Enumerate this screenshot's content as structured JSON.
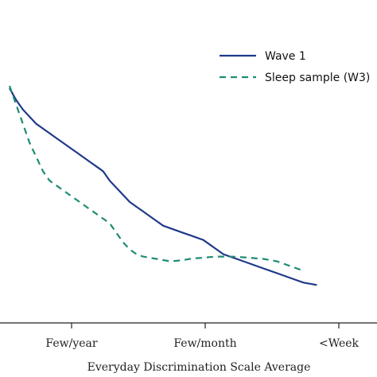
{
  "chart_data": {
    "type": "line",
    "xlabel": "Everyday Discrimination Scale Average",
    "ylabel": "",
    "title": "",
    "xlim": [
      -0.55,
      2.3
    ],
    "ylim": [
      0,
      1
    ],
    "x_ticks": [
      {
        "value": 0.5,
        "label": "Few/year"
      },
      {
        "value": 1.5,
        "label": "Few/month"
      },
      {
        "value": 2.5,
        "label": "<Week"
      }
    ],
    "legend_position": "top-right",
    "series": [
      {
        "name": "Wave  1",
        "color": "#1f3a8a",
        "dash": "solid",
        "points": [
          [
            0.0,
            0.99
          ],
          [
            0.05,
            0.94
          ],
          [
            0.1,
            0.9
          ],
          [
            0.15,
            0.87
          ],
          [
            0.2,
            0.84
          ],
          [
            0.25,
            0.82
          ],
          [
            0.3,
            0.8
          ],
          [
            0.35,
            0.78
          ],
          [
            0.4,
            0.76
          ],
          [
            0.45,
            0.74
          ],
          [
            0.5,
            0.72
          ],
          [
            0.55,
            0.7
          ],
          [
            0.6,
            0.68
          ],
          [
            0.65,
            0.66
          ],
          [
            0.7,
            0.64
          ],
          [
            0.75,
            0.6
          ],
          [
            0.8,
            0.57
          ],
          [
            0.85,
            0.54
          ],
          [
            0.9,
            0.51
          ],
          [
            0.95,
            0.49
          ],
          [
            1.0,
            0.47
          ],
          [
            1.05,
            0.45
          ],
          [
            1.1,
            0.43
          ],
          [
            1.15,
            0.41
          ],
          [
            1.2,
            0.4
          ],
          [
            1.25,
            0.39
          ],
          [
            1.3,
            0.38
          ],
          [
            1.35,
            0.37
          ],
          [
            1.4,
            0.36
          ],
          [
            1.45,
            0.35
          ],
          [
            1.5,
            0.33
          ],
          [
            1.55,
            0.31
          ],
          [
            1.6,
            0.29
          ],
          [
            1.65,
            0.28
          ],
          [
            1.7,
            0.27
          ],
          [
            1.75,
            0.26
          ],
          [
            1.8,
            0.25
          ],
          [
            1.85,
            0.24
          ],
          [
            1.9,
            0.23
          ],
          [
            1.95,
            0.22
          ],
          [
            2.0,
            0.21
          ],
          [
            2.05,
            0.2
          ],
          [
            2.1,
            0.19
          ],
          [
            2.15,
            0.18
          ],
          [
            2.2,
            0.17
          ],
          [
            2.25,
            0.165
          ],
          [
            2.3,
            0.16
          ]
        ]
      },
      {
        "name": "Sleep sample (W3)",
        "color": "#1e8c74",
        "dash": "dashed",
        "points": [
          [
            0.0,
            1.0
          ],
          [
            0.05,
            0.92
          ],
          [
            0.1,
            0.84
          ],
          [
            0.15,
            0.76
          ],
          [
            0.2,
            0.7
          ],
          [
            0.25,
            0.64
          ],
          [
            0.3,
            0.6
          ],
          [
            0.35,
            0.58
          ],
          [
            0.4,
            0.56
          ],
          [
            0.45,
            0.54
          ],
          [
            0.5,
            0.52
          ],
          [
            0.55,
            0.5
          ],
          [
            0.6,
            0.48
          ],
          [
            0.65,
            0.46
          ],
          [
            0.7,
            0.44
          ],
          [
            0.75,
            0.42
          ],
          [
            0.8,
            0.38
          ],
          [
            0.85,
            0.34
          ],
          [
            0.9,
            0.31
          ],
          [
            0.95,
            0.29
          ],
          [
            1.0,
            0.28
          ],
          [
            1.05,
            0.275
          ],
          [
            1.1,
            0.27
          ],
          [
            1.15,
            0.265
          ],
          [
            1.2,
            0.26
          ],
          [
            1.25,
            0.262
          ],
          [
            1.3,
            0.265
          ],
          [
            1.35,
            0.27
          ],
          [
            1.4,
            0.273
          ],
          [
            1.45,
            0.275
          ],
          [
            1.5,
            0.278
          ],
          [
            1.55,
            0.28
          ],
          [
            1.6,
            0.28
          ],
          [
            1.65,
            0.28
          ],
          [
            1.7,
            0.279
          ],
          [
            1.75,
            0.277
          ],
          [
            1.8,
            0.275
          ],
          [
            1.85,
            0.272
          ],
          [
            1.9,
            0.27
          ],
          [
            1.95,
            0.265
          ],
          [
            2.0,
            0.26
          ],
          [
            2.05,
            0.25
          ],
          [
            2.1,
            0.24
          ],
          [
            2.15,
            0.23
          ],
          [
            2.2,
            0.22
          ]
        ]
      }
    ]
  }
}
